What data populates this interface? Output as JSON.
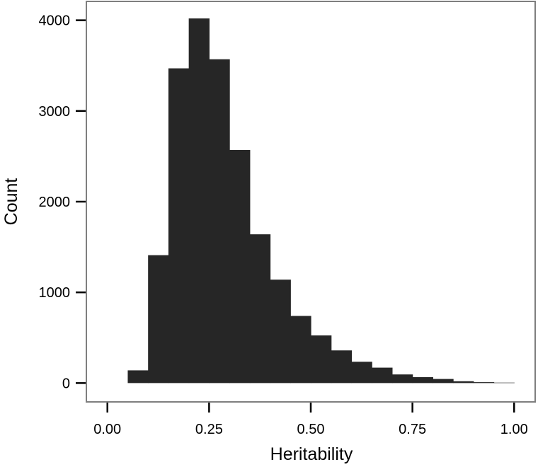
{
  "chart_data": {
    "type": "bar",
    "title": "",
    "xlabel": "Heritability",
    "ylabel": "Count",
    "xlim": [
      -0.05,
      1.05
    ],
    "ylim": [
      -200,
      4200
    ],
    "x_ticks": [
      0.0,
      0.25,
      0.5,
      0.75,
      1.0
    ],
    "x_tick_labels": [
      "0.00",
      "0.25",
      "0.50",
      "0.75",
      "1.00"
    ],
    "y_ticks": [
      0,
      1000,
      2000,
      3000,
      4000
    ],
    "y_tick_labels": [
      "0",
      "1000",
      "2000",
      "3000",
      "4000"
    ],
    "bin_width": 0.05,
    "bin_starts": [
      0.05,
      0.1,
      0.15,
      0.2,
      0.25,
      0.3,
      0.35,
      0.4,
      0.45,
      0.5,
      0.55,
      0.6,
      0.65,
      0.7,
      0.75,
      0.8,
      0.85,
      0.9,
      0.95
    ],
    "values": [
      140,
      1410,
      3470,
      4020,
      3570,
      2570,
      1640,
      1140,
      740,
      525,
      360,
      235,
      170,
      95,
      65,
      45,
      20,
      10,
      5
    ],
    "bar_color": "#262626",
    "grid": false,
    "legend": "none"
  }
}
